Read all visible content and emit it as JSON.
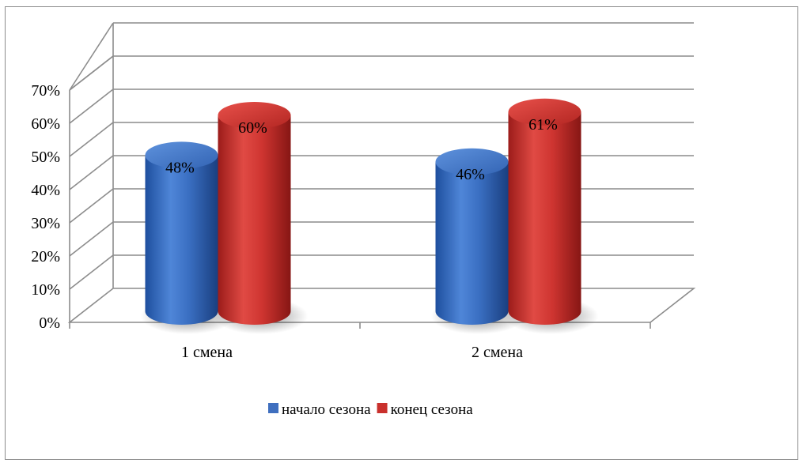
{
  "chart_data": {
    "type": "bar",
    "style": "3d-cylinder",
    "categories": [
      "1 смена",
      "2 смена"
    ],
    "series": [
      {
        "name": "начало сезона",
        "values": [
          48,
          46
        ],
        "labels": [
          "48%",
          "46%"
        ],
        "color": "#3f6fbf"
      },
      {
        "name": "конец сезона",
        "values": [
          60,
          61
        ],
        "labels": [
          "60%",
          "61%"
        ],
        "color": "#c9302c"
      }
    ],
    "yticks": [
      "0%",
      "10%",
      "20%",
      "30%",
      "40%",
      "50%",
      "60%",
      "70%"
    ],
    "ylim": [
      0,
      70
    ],
    "grid": true,
    "legend": "bottom",
    "title": "",
    "xlabel": "",
    "ylabel": ""
  }
}
